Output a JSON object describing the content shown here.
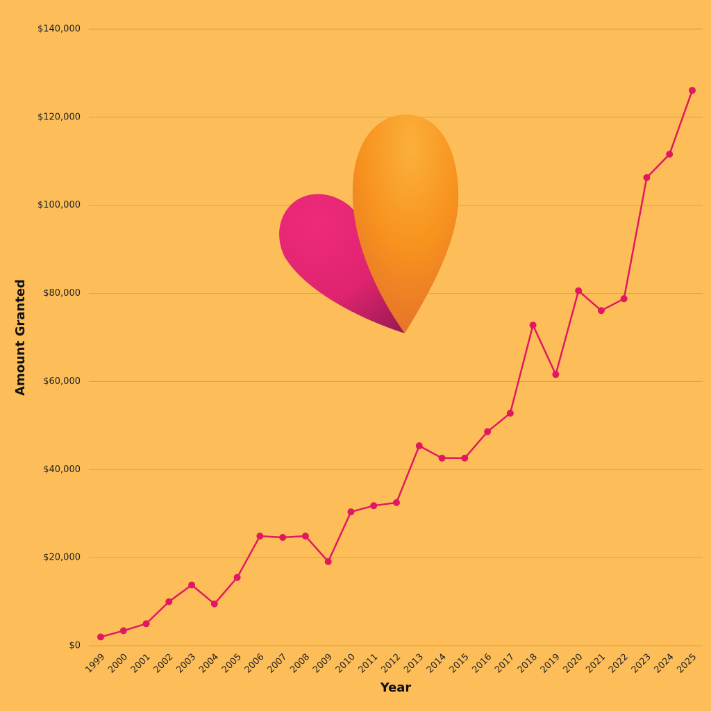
{
  "chart_data": {
    "type": "line",
    "y_label": "Amount Granted",
    "x_label": "Year",
    "categories": [
      "1999",
      "2000",
      "2001",
      "2002",
      "2003",
      "2004",
      "2005",
      "2006",
      "2007",
      "2008",
      "2009",
      "2010",
      "2011",
      "2012",
      "2013",
      "2014",
      "2015",
      "2016",
      "2017",
      "2018",
      "2019",
      "2020",
      "2021",
      "2022",
      "2023",
      "2024",
      "2025"
    ],
    "values": [
      2000,
      3400,
      5000,
      10000,
      13800,
      9500,
      15500,
      24900,
      24600,
      24900,
      19100,
      30400,
      31800,
      32500,
      45400,
      42600,
      42600,
      48600,
      52800,
      72800,
      61600,
      80600,
      76100,
      78800,
      106300,
      111600,
      126100
    ],
    "color": "#e0195f",
    "ylim": [
      0,
      140000
    ],
    "yticks": [
      {
        "value": 0,
        "label": "$0"
      },
      {
        "value": 20000,
        "label": "$20,000"
      },
      {
        "value": 40000,
        "label": "$40,000"
      },
      {
        "value": 60000,
        "label": "$60,000"
      },
      {
        "value": 80000,
        "label": "$80,000"
      },
      {
        "value": 100000,
        "label": "$100,000"
      },
      {
        "value": 120000,
        "label": "$120,000"
      },
      {
        "value": 140000,
        "label": "$140,000"
      }
    ],
    "grid": true
  }
}
